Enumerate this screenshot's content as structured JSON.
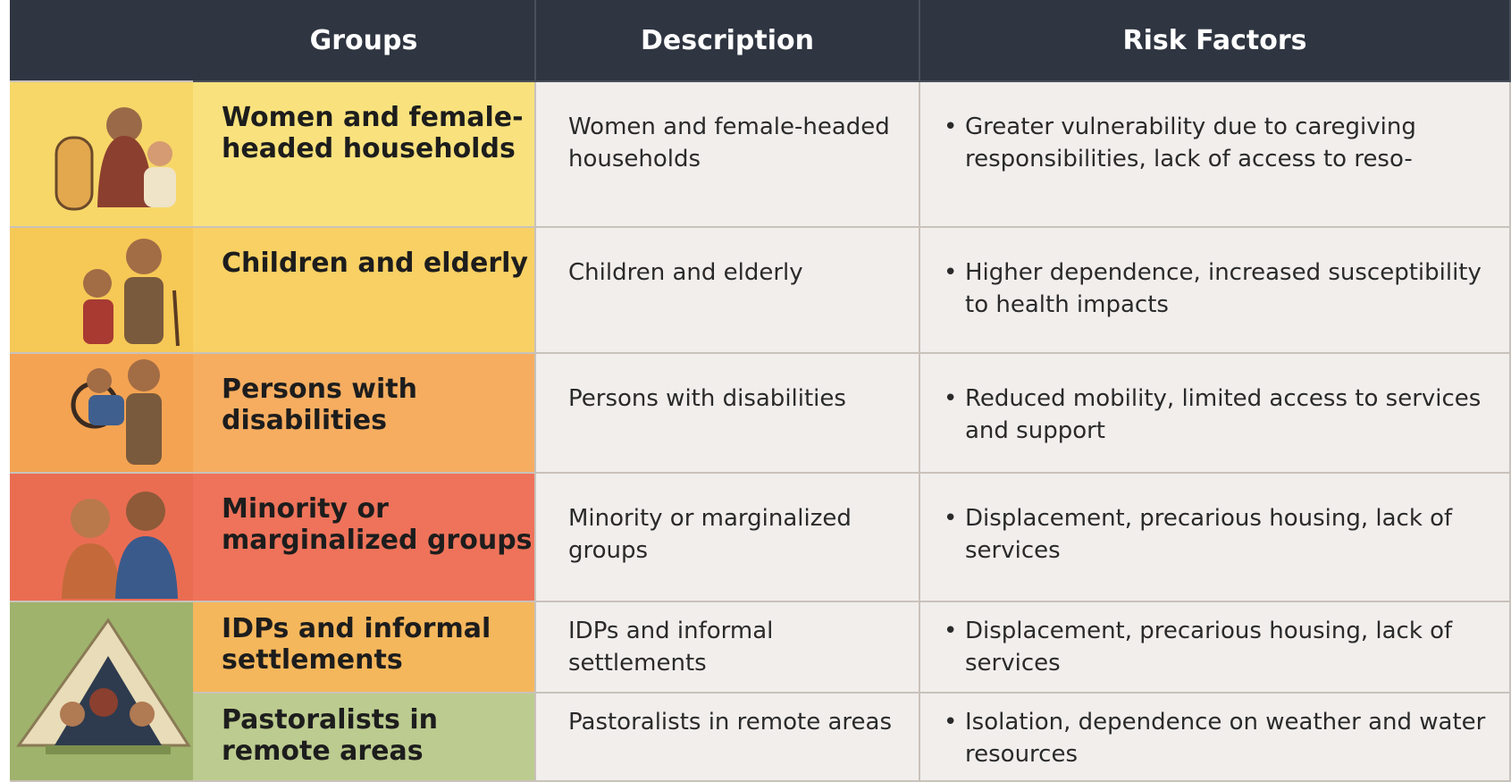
{
  "header": {
    "columns": [
      "Groups",
      "Description",
      "Risk Factors"
    ]
  },
  "table": {
    "rows": [
      {
        "group": "Women and female-headed households",
        "description": "Women and female-headed households",
        "risk": "Greater vulnerability due to caregiving responsibilities, lack of access to reso-"
      },
      {
        "group": "Children and elderly",
        "description": "Children and elderly",
        "risk": "Higher dependence, increased susceptibility to health impacts"
      },
      {
        "group": "Persons with disabilities",
        "description": "Persons with disabilities",
        "risk": "Reduced mobility, limited access to services and support"
      },
      {
        "group": "Minority or marginalized groups",
        "description": "Minority or marginalized groups",
        "risk": "Displacement, precarious housing, lack of services"
      },
      {
        "group": "IDPs and informal settlements",
        "description": "IDPs and informal settlements",
        "risk": "Displacement, precarious housing, lack of services"
      },
      {
        "group": "Pastoralists in remote areas",
        "description": "Pastoralists in remote areas",
        "risk": "Isolation, dependence on weather and water resources"
      }
    ]
  }
}
